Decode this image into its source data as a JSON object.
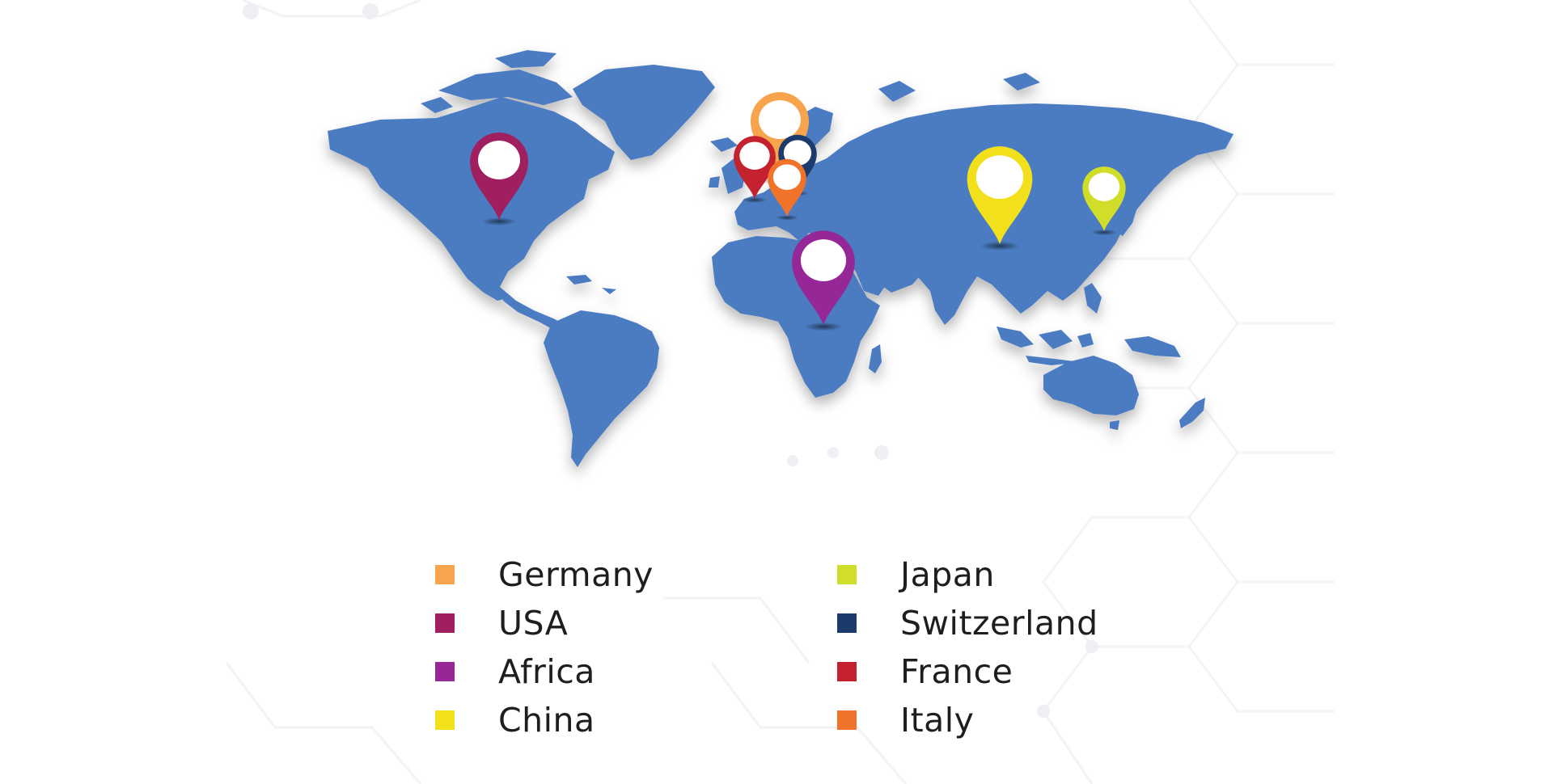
{
  "map": {
    "land_color": "#4b7cc2",
    "background_color": "#ffffff",
    "pins": [
      {
        "id": "usa",
        "country": "USA",
        "color": "#a01f5f"
      },
      {
        "id": "germany",
        "country": "Germany",
        "color": "#f7a44d"
      },
      {
        "id": "france",
        "country": "France",
        "color": "#c4222e"
      },
      {
        "id": "switzerland",
        "country": "Switzerland",
        "color": "#1b3b6d"
      },
      {
        "id": "italy",
        "country": "Italy",
        "color": "#f1732a"
      },
      {
        "id": "africa",
        "country": "Africa",
        "color": "#962796"
      },
      {
        "id": "china",
        "country": "China",
        "color": "#f3e01d"
      },
      {
        "id": "japan",
        "country": "Japan",
        "color": "#d1de29"
      }
    ]
  },
  "legend": {
    "items": [
      {
        "label": "Germany",
        "color": "#f7a44d"
      },
      {
        "label": "USA",
        "color": "#a01f5f"
      },
      {
        "label": "Africa",
        "color": "#962796"
      },
      {
        "label": "China",
        "color": "#f3e01d"
      },
      {
        "label": "Japan",
        "color": "#d1de29"
      },
      {
        "label": "Switzerland",
        "color": "#1b3b6d"
      },
      {
        "label": "France",
        "color": "#c4222e"
      },
      {
        "label": "Italy",
        "color": "#f1732a"
      }
    ]
  }
}
